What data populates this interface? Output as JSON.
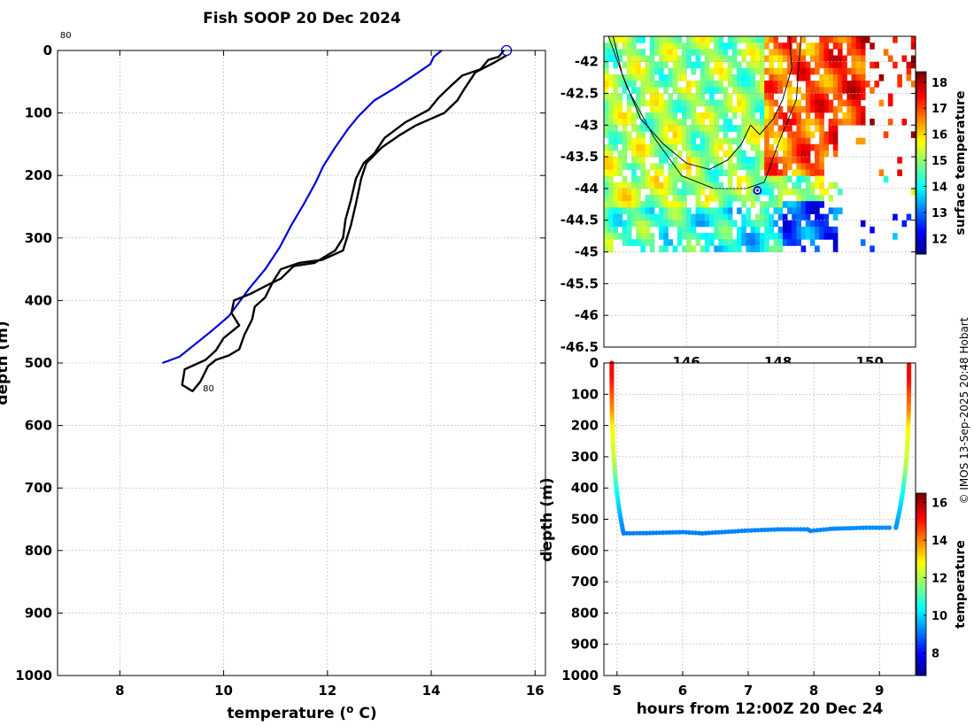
{
  "figure_title": "Fish SOOP 20 Dec 2024",
  "credit": "© IMOS 13-Sep-2025 20:48 Hobart",
  "colors": {
    "argo_profile": "#0000dd",
    "fish_profile": "#000000",
    "position_marker": "#0000dd",
    "coastline": "#000000"
  },
  "chart_data": [
    {
      "id": "profile",
      "type": "line",
      "xlabel": "temperature (",
      "xlabel_unit": "o",
      "xlabel_tail": " C)",
      "ylabel": "depth (m)",
      "xlim": [
        6.8,
        16.2
      ],
      "ylim": [
        1000,
        0
      ],
      "y_reversed": true,
      "xticks": [
        8,
        10,
        12,
        14,
        16
      ],
      "yticks": [
        0,
        100,
        200,
        300,
        400,
        500,
        600,
        700,
        800,
        900,
        1000
      ],
      "grid": true,
      "annotations": [
        {
          "text": "80",
          "x": 6.85,
          "y": -20
        },
        {
          "text": "80",
          "x": 9.6,
          "y": 545
        }
      ],
      "series": [
        {
          "color": "#0000dd",
          "points": [
            [
              14.2,
              0
            ],
            [
              14.05,
              10
            ],
            [
              13.98,
              22
            ],
            [
              13.7,
              38
            ],
            [
              13.3,
              60
            ],
            [
              12.9,
              80
            ],
            [
              12.6,
              105
            ],
            [
              12.4,
              125
            ],
            [
              12.15,
              155
            ],
            [
              11.92,
              185
            ],
            [
              11.78,
              210
            ],
            [
              11.55,
              245
            ],
            [
              11.3,
              280
            ],
            [
              11.08,
              315
            ],
            [
              10.8,
              350
            ],
            [
              10.5,
              380
            ],
            [
              10.1,
              425
            ],
            [
              9.75,
              450
            ],
            [
              9.45,
              470
            ],
            [
              9.15,
              490
            ],
            [
              8.82,
              500
            ]
          ]
        },
        {
          "color": "#000000",
          "points": [
            [
              15.4,
              0
            ],
            [
              15.3,
              10
            ],
            [
              15.1,
              15
            ],
            [
              14.95,
              30
            ],
            [
              14.6,
              40
            ],
            [
              14.4,
              55
            ],
            [
              14.15,
              75
            ],
            [
              13.95,
              95
            ],
            [
              13.5,
              115
            ],
            [
              13.1,
              140
            ],
            [
              12.9,
              165
            ],
            [
              12.7,
              180
            ],
            [
              12.55,
              205
            ],
            [
              12.45,
              240
            ],
            [
              12.35,
              270
            ],
            [
              12.3,
              300
            ],
            [
              12.15,
              320
            ],
            [
              11.75,
              340
            ],
            [
              11.35,
              345
            ],
            [
              11.1,
              365
            ],
            [
              10.85,
              375
            ],
            [
              10.5,
              390
            ],
            [
              10.2,
              400
            ],
            [
              10.15,
              420
            ],
            [
              10.3,
              440
            ],
            [
              10.0,
              460
            ],
            [
              9.85,
              480
            ],
            [
              9.65,
              495
            ],
            [
              9.25,
              510
            ],
            [
              9.2,
              535
            ],
            [
              9.3,
              540
            ],
            [
              9.4,
              545
            ],
            [
              9.55,
              530
            ],
            [
              9.7,
              505
            ],
            [
              9.85,
              495
            ],
            [
              10.1,
              488
            ],
            [
              10.3,
              478
            ],
            [
              10.4,
              455
            ],
            [
              10.55,
              430
            ],
            [
              10.6,
              410
            ],
            [
              10.8,
              395
            ],
            [
              10.95,
              370
            ],
            [
              11.1,
              350
            ],
            [
              11.45,
              340
            ],
            [
              11.9,
              335
            ],
            [
              12.3,
              320
            ],
            [
              12.45,
              280
            ],
            [
              12.55,
              245
            ],
            [
              12.65,
              205
            ],
            [
              12.75,
              180
            ],
            [
              13.05,
              155
            ],
            [
              13.4,
              135
            ],
            [
              13.7,
              120
            ],
            [
              14.25,
              100
            ],
            [
              14.5,
              80
            ],
            [
              14.65,
              60
            ],
            [
              14.85,
              35
            ],
            [
              15.2,
              20
            ],
            [
              15.45,
              8
            ]
          ]
        }
      ],
      "marker": {
        "x": 15.45,
        "y": 0
      }
    },
    {
      "id": "sst_map",
      "type": "heatmap",
      "colorbar_label": "surface temperature",
      "xlim": [
        144.2,
        151.0
      ],
      "ylim": [
        -46.5,
        -41.6
      ],
      "xticks": [
        146,
        148,
        150
      ],
      "yticks": [
        -42,
        -42.5,
        -43,
        -43.5,
        -44,
        -44.5,
        -45,
        -45.5,
        -46,
        -46.5
      ],
      "clim": [
        11.4,
        18.4
      ],
      "cticks": [
        12,
        13,
        14,
        15,
        16,
        17,
        18
      ],
      "grid": true,
      "position": {
        "lon": 147.55,
        "lat": -44.03
      }
    },
    {
      "id": "section",
      "type": "scatter",
      "xlabel": "hours from 12:00Z 20 Dec 24",
      "ylabel": "depth (m)",
      "colorbar_label": "temperature",
      "xlim": [
        4.8,
        9.55
      ],
      "ylim": [
        1000,
        0
      ],
      "y_reversed": true,
      "xticks": [
        5,
        6,
        7,
        8,
        9
      ],
      "yticks": [
        0,
        100,
        200,
        300,
        400,
        500,
        600,
        700,
        800,
        900,
        1000
      ],
      "clim": [
        6.8,
        16.5
      ],
      "cticks": [
        8,
        10,
        12,
        14,
        16
      ],
      "descent": {
        "t_start": 4.92,
        "t_end": 5.1,
        "depth_end": 545
      },
      "bottom_track": [
        [
          5.1,
          545
        ],
        [
          5.5,
          544
        ],
        [
          6.0,
          541
        ],
        [
          6.3,
          545
        ],
        [
          6.6,
          541
        ],
        [
          7.0,
          536
        ],
        [
          7.5,
          532
        ],
        [
          7.9,
          532
        ],
        [
          7.95,
          537
        ],
        [
          8.3,
          530
        ],
        [
          8.8,
          527
        ],
        [
          9.2,
          527
        ]
      ],
      "ascent": {
        "t_start": 9.25,
        "t_end": 9.45,
        "depth_start": 527
      },
      "temperature_profile": [
        [
          0,
          15.4
        ],
        [
          50,
          15.2
        ],
        [
          100,
          14.5
        ],
        [
          150,
          14.0
        ],
        [
          200,
          13.0
        ],
        [
          250,
          12.6
        ],
        [
          300,
          12.4
        ],
        [
          350,
          11.7
        ],
        [
          400,
          10.7
        ],
        [
          450,
          10.1
        ],
        [
          500,
          9.6
        ],
        [
          545,
          9.2
        ]
      ]
    }
  ]
}
